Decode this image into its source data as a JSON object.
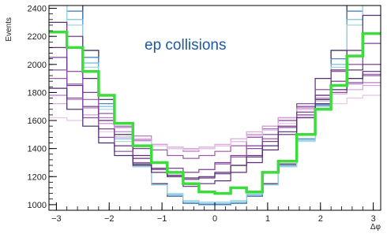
{
  "chart_data": {
    "type": "line",
    "step": true,
    "annotation": "ep collisions",
    "xlabel": "Δφ",
    "ylabel": "Events",
    "xlim": [
      -3.14,
      3.14
    ],
    "ylim": [
      960,
      2420
    ],
    "x_ticks": [
      -3,
      -2,
      -1,
      0,
      1,
      2,
      3
    ],
    "x_tick_labels": [
      "−3",
      "−2",
      "−1",
      "0",
      "1",
      "2",
      "3"
    ],
    "y_ticks": [
      1000,
      1200,
      1400,
      1600,
      1800,
      2000,
      2200,
      2400
    ],
    "y_tick_labels": [
      "1000",
      "1200",
      "1400",
      "1600",
      "1800",
      "2000",
      "2200",
      "2400"
    ],
    "bin_edges": [
      -3.14,
      -2.8,
      -2.5,
      -2.2,
      -1.9,
      -1.55,
      -1.2,
      -0.9,
      -0.6,
      -0.3,
      0.0,
      0.3,
      0.6,
      0.9,
      1.2,
      1.55,
      1.9,
      2.2,
      2.5,
      2.8,
      3.14
    ],
    "highlight_series": "highlight",
    "series": [
      {
        "color": "#2a1f4d",
        "values": [
          2500,
          2450,
          2100,
          1750,
          1500,
          1290,
          1150,
          1060,
          1010,
          1000,
          1000,
          1010,
          1060,
          1150,
          1290,
          1500,
          1750,
          2100,
          2450,
          2500
        ]
      },
      {
        "color": "#3a7ab8",
        "values": [
          2480,
          2380,
          2050,
          1720,
          1480,
          1280,
          1140,
          1060,
          1010,
          1000,
          1000,
          1010,
          1060,
          1140,
          1280,
          1470,
          1710,
          2040,
          2380,
          2480
        ]
      },
      {
        "color": "#6db6d8",
        "values": [
          2450,
          2320,
          2010,
          1700,
          1470,
          1270,
          1140,
          1070,
          1020,
          1010,
          1010,
          1020,
          1070,
          1140,
          1270,
          1460,
          1700,
          2000,
          2320,
          2450
        ]
      },
      {
        "color": "#9ed8e2",
        "values": [
          2420,
          2280,
          1980,
          1680,
          1450,
          1270,
          1140,
          1080,
          1030,
          1020,
          1020,
          1030,
          1080,
          1140,
          1270,
          1450,
          1680,
          1980,
          2280,
          2420
        ]
      },
      {
        "id": "highlight",
        "color": "#3ddc3d",
        "values": [
          2230,
          2120,
          1950,
          1780,
          1580,
          1420,
          1300,
          1230,
          1150,
          1090,
          1080,
          1120,
          1090,
          1230,
          1310,
          1500,
          1680,
          1850,
          2060,
          2220
        ]
      },
      {
        "color": "#5c2a7a",
        "values": [
          2300,
          2200,
          1900,
          1600,
          1480,
          1350,
          1250,
          1200,
          1130,
          1150,
          1170,
          1230,
          1300,
          1390,
          1500,
          1700,
          1900,
          1960,
          2100,
          2350
        ]
      },
      {
        "color": "#7e3f96",
        "values": [
          2050,
          1950,
          1800,
          1580,
          1520,
          1400,
          1300,
          1260,
          1230,
          1250,
          1300,
          1350,
          1420,
          1500,
          1600,
          1720,
          1820,
          1950,
          2000,
          2150
        ]
      },
      {
        "color": "#9a5aa8",
        "values": [
          1900,
          1860,
          1750,
          1650,
          1560,
          1460,
          1390,
          1350,
          1330,
          1350,
          1380,
          1420,
          1480,
          1540,
          1620,
          1700,
          1780,
          1850,
          1900,
          1930
        ]
      },
      {
        "color": "#b87cc2",
        "values": [
          1780,
          1750,
          1690,
          1620,
          1550,
          1490,
          1430,
          1400,
          1380,
          1400,
          1420,
          1450,
          1500,
          1560,
          1620,
          1690,
          1760,
          1820,
          1860,
          1870
        ]
      },
      {
        "color": "#d6a3d8",
        "values": [
          1720,
          1680,
          1640,
          1580,
          1520,
          1470,
          1430,
          1410,
          1400,
          1410,
          1430,
          1470,
          1520,
          1560,
          1620,
          1680,
          1740,
          1790,
          1820,
          1850
        ]
      },
      {
        "color": "#e7c4e6",
        "values": [
          1620,
          1600,
          1560,
          1520,
          1480,
          1450,
          1420,
          1400,
          1390,
          1400,
          1420,
          1450,
          1490,
          1530,
          1580,
          1630,
          1680,
          1720,
          1760,
          1780
        ]
      },
      {
        "color": "#6a2f7e",
        "values": [
          2120,
          1850,
          1700,
          1540,
          1420,
          1330,
          1260,
          1210,
          1180,
          1190,
          1220,
          1280,
          1350,
          1450,
          1560,
          1660,
          1780,
          1880,
          1960,
          2000
        ]
      },
      {
        "color": "#8d4ea4",
        "values": [
          1960,
          1760,
          1620,
          1480,
          1380,
          1300,
          1250,
          1230,
          1230,
          1250,
          1290,
          1340,
          1400,
          1470,
          1550,
          1640,
          1720,
          1800,
          1870,
          1920
        ]
      },
      {
        "color": "#4b2e6e",
        "values": [
          1830,
          1680,
          1560,
          1440,
          1350,
          1280,
          1230,
          1200,
          1190,
          1200,
          1230,
          1280,
          1340,
          1420,
          1520,
          1620,
          1720,
          1820,
          1900,
          1950
        ]
      }
    ]
  }
}
